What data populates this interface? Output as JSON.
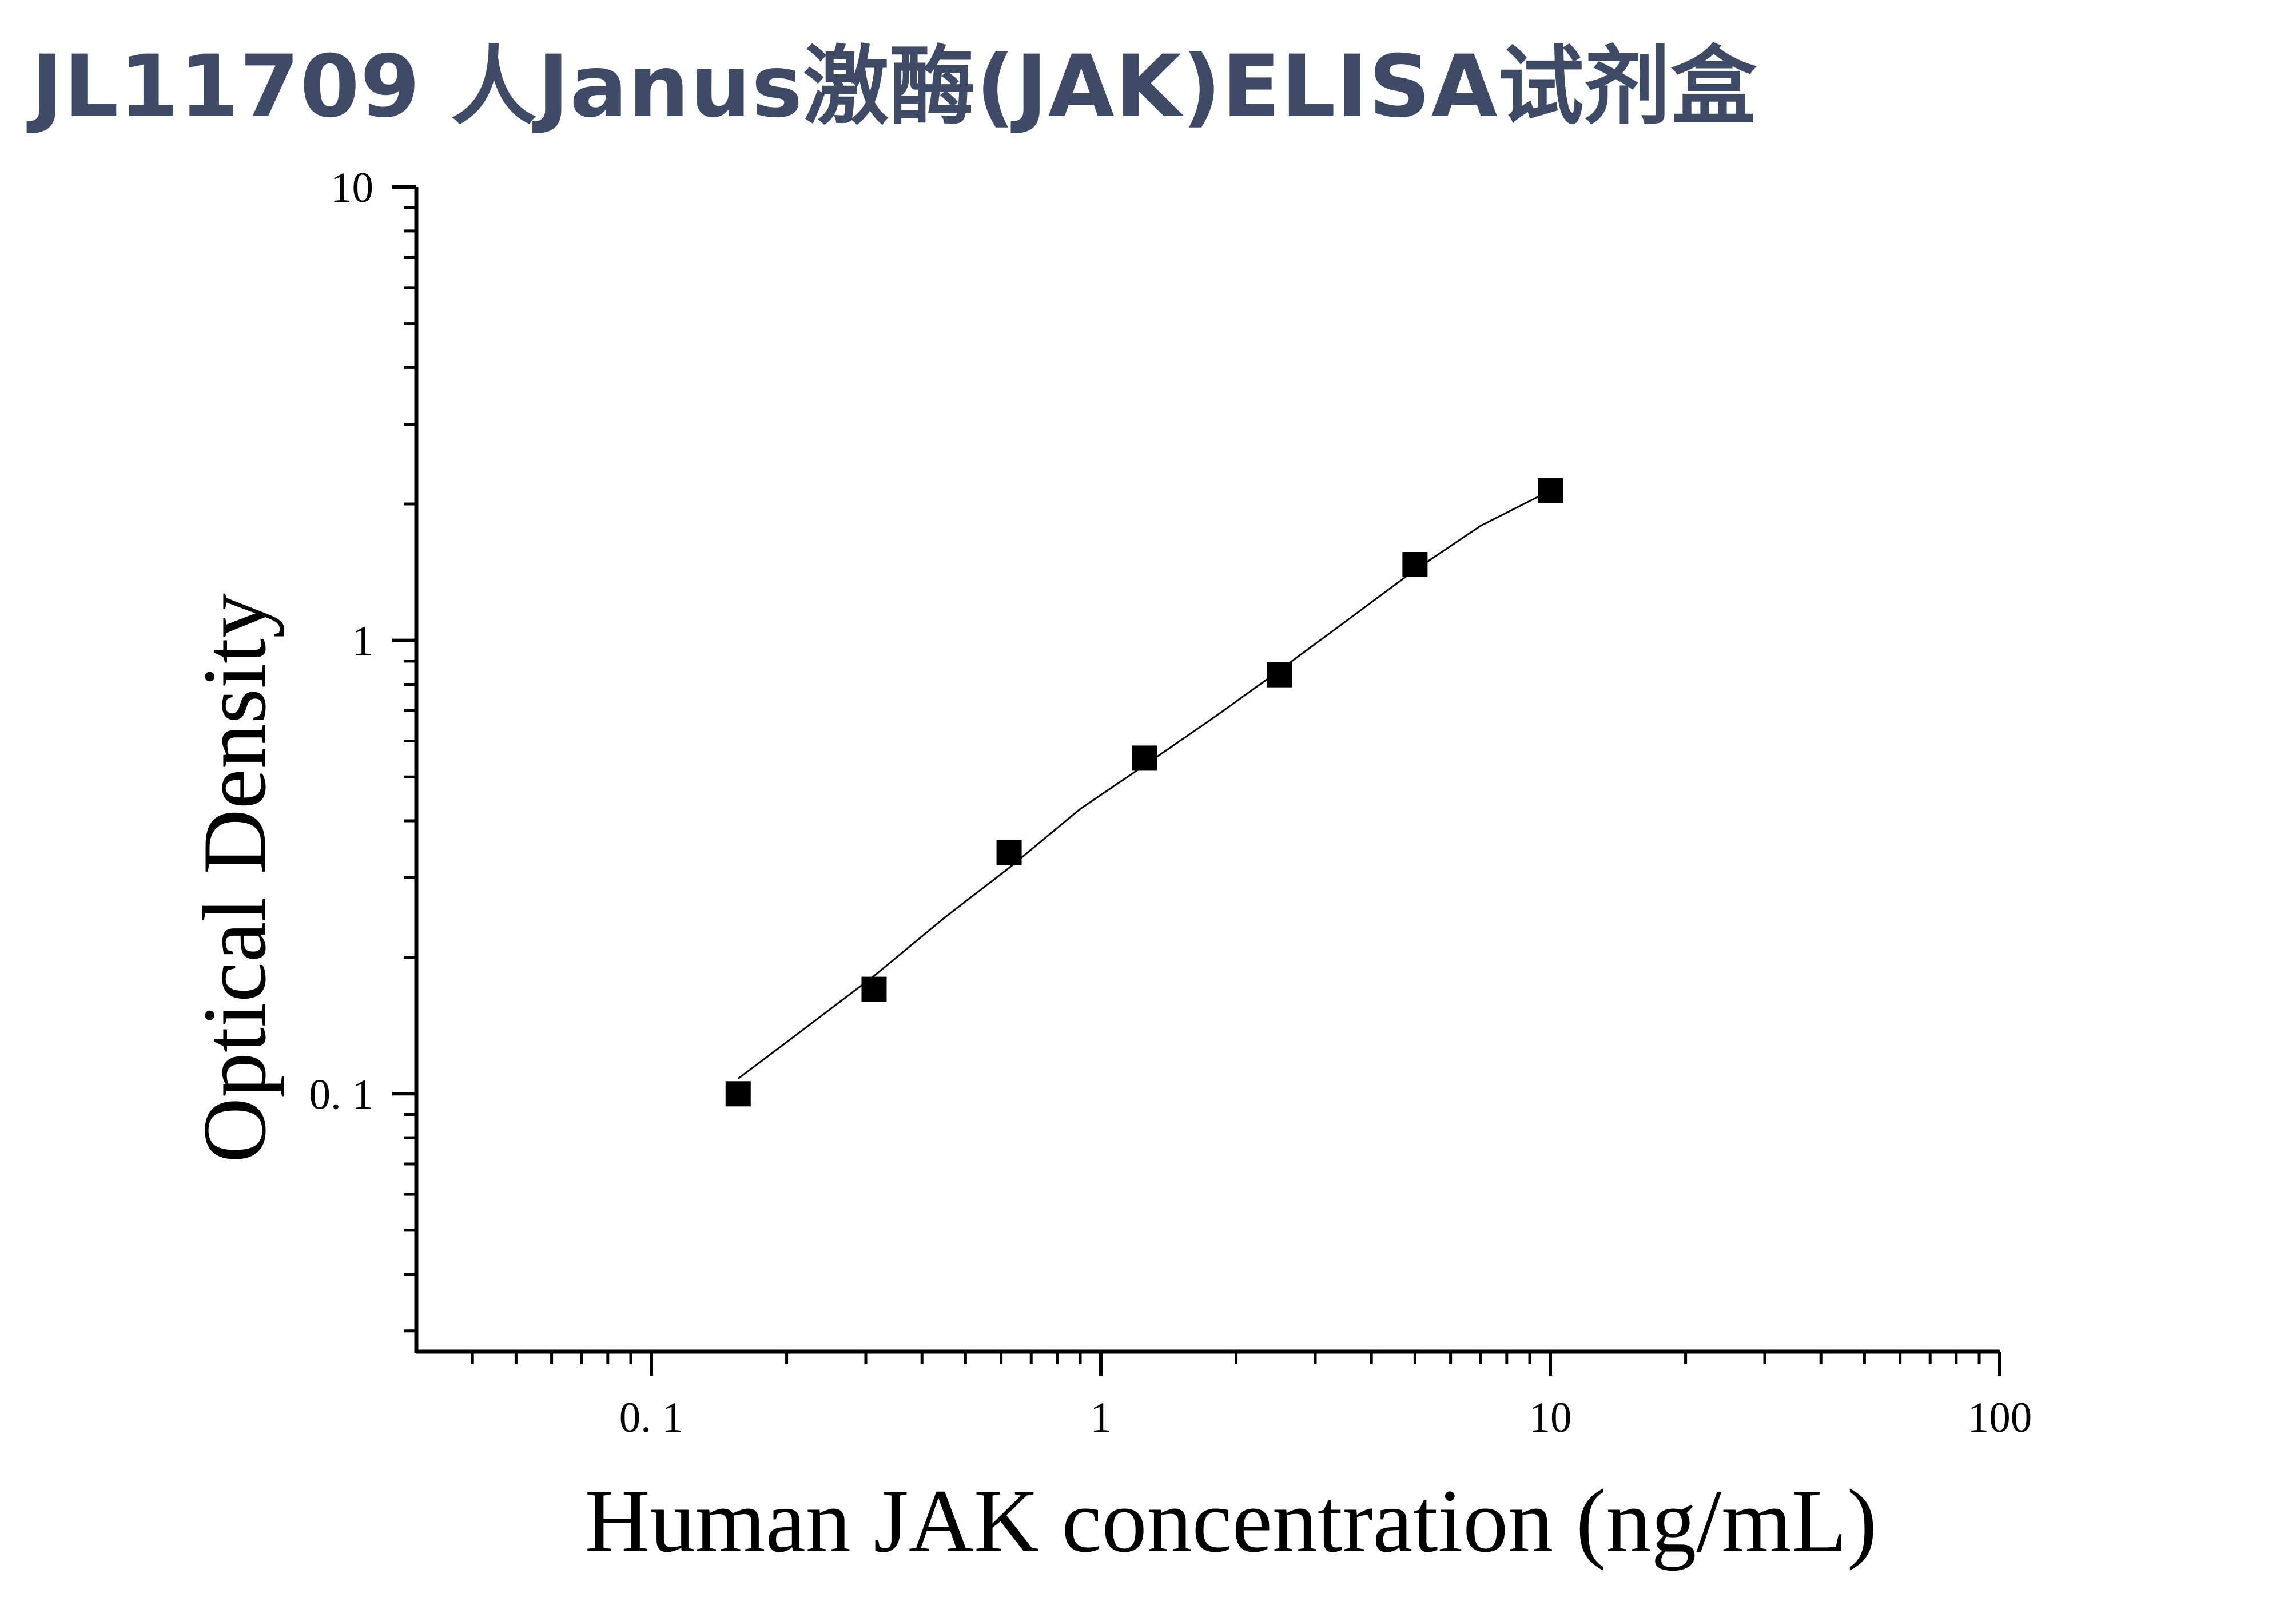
{
  "title": "JL11709 人Janus激酶(JAK)ELISA试剂盒",
  "chart_data": {
    "type": "scatter",
    "xlabel": "Human JAK concentration (ng/mL)",
    "ylabel": "Optical Density",
    "xscale": "log",
    "yscale": "log",
    "xlim": [
      0.03,
      100
    ],
    "ylim": [
      0.027,
      10
    ],
    "x_ticks": [
      0.1,
      1,
      10,
      100
    ],
    "x_tick_labels": [
      "0. 1",
      "1",
      "10",
      "100"
    ],
    "y_ticks": [
      0.1,
      1,
      10
    ],
    "y_tick_labels": [
      "0. 1",
      "1",
      "10"
    ],
    "grid": false,
    "series": [
      {
        "marker": "square",
        "color": "#000000",
        "x": [
          0.156,
          0.313,
          0.625,
          1.25,
          2.5,
          5,
          10
        ],
        "y": [
          0.1,
          0.17,
          0.34,
          0.55,
          0.84,
          1.47,
          2.14
        ]
      }
    ],
    "fit_curve": {
      "color": "#000000",
      "x": [
        0.156,
        0.2,
        0.313,
        0.45,
        0.625,
        0.9,
        1.25,
        1.8,
        2.5,
        3.5,
        5,
        7,
        10
      ],
      "y": [
        0.108,
        0.13,
        0.182,
        0.245,
        0.315,
        0.425,
        0.53,
        0.68,
        0.86,
        1.1,
        1.43,
        1.79,
        2.14
      ]
    }
  }
}
